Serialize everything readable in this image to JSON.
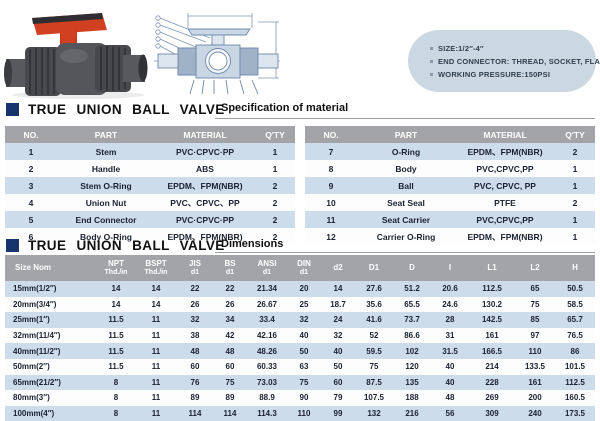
{
  "info_box": {
    "items": [
      "SIZE:1/2″-4″",
      "END CONNECTOR: THREAD, SOCKET, FLANGE",
      "WORKING PRESSURE:150PSI"
    ]
  },
  "sections": {
    "materials": {
      "title": "TRUE UNION BALL VALVE",
      "subtitle": "Specification of material"
    },
    "dimensions": {
      "title": "TRUE UNION BALL VALVE",
      "subtitle": "Dimensions"
    }
  },
  "material_table": {
    "headers": [
      "NO.",
      "PART",
      "MATERIAL",
      "Q'TY"
    ],
    "left_rows": [
      [
        "1",
        "Stem",
        "PVC·CPVC·PP",
        "1"
      ],
      [
        "2",
        "Handle",
        "ABS",
        "1"
      ],
      [
        "3",
        "Stem O-Ring",
        "EPDM、FPM(NBR)",
        "2"
      ],
      [
        "4",
        "Union Nut",
        "PVC、CPVC、PP",
        "2"
      ],
      [
        "5",
        "End Connector",
        "PVC·CPVC·PP",
        "2"
      ],
      [
        "6",
        "Body O-Ring",
        "EPDM、FPM(NBR)",
        "2"
      ]
    ],
    "right_rows": [
      [
        "7",
        "O-Ring",
        "EPDM、FPM(NBR)",
        "2"
      ],
      [
        "8",
        "Body",
        "PVC,CPVC,PP",
        "1"
      ],
      [
        "9",
        "Ball",
        "PVC, CPVC, PP",
        "1"
      ],
      [
        "10",
        "Seat Seal",
        "PTFE",
        "2"
      ],
      [
        "11",
        "Seat Carrier",
        "PVC,CPVC,PP",
        "1"
      ],
      [
        "12",
        "Carrier O-Ring",
        "EPDM、FPM(NBR)",
        "1"
      ]
    ]
  },
  "dimensions_table": {
    "headers": [
      {
        "top": "Size Nom",
        "sub": ""
      },
      {
        "top": "NPT",
        "sub": "Thd./in"
      },
      {
        "top": "BSPT",
        "sub": "Thd./in"
      },
      {
        "top": "JIS",
        "sub": "d1"
      },
      {
        "top": "BS",
        "sub": "d1"
      },
      {
        "top": "ANSI",
        "sub": "d1"
      },
      {
        "top": "DIN",
        "sub": "d1"
      },
      {
        "top": "d2",
        "sub": ""
      },
      {
        "top": "D1",
        "sub": ""
      },
      {
        "top": "D",
        "sub": ""
      },
      {
        "top": "I",
        "sub": ""
      },
      {
        "top": "L1",
        "sub": ""
      },
      {
        "top": "L2",
        "sub": ""
      },
      {
        "top": "H",
        "sub": ""
      }
    ],
    "rows": [
      [
        "15mm(1/2″)",
        "14",
        "14",
        "22",
        "22",
        "21.34",
        "20",
        "14",
        "27.6",
        "51.2",
        "20.6",
        "112.5",
        "65",
        "50.5"
      ],
      [
        "20mm(3/4″)",
        "14",
        "14",
        "26",
        "26",
        "26.67",
        "25",
        "18.7",
        "35.6",
        "65.5",
        "24.6",
        "130.2",
        "75",
        "58.5"
      ],
      [
        "25mm(1″)",
        "11.5",
        "11",
        "32",
        "34",
        "33.4",
        "32",
        "24",
        "41.6",
        "73.7",
        "28",
        "142.5",
        "85",
        "65.7"
      ],
      [
        "32mm(11/4″)",
        "11.5",
        "11",
        "38",
        "42",
        "42.16",
        "40",
        "32",
        "52",
        "86.6",
        "31",
        "161",
        "97",
        "76.5"
      ],
      [
        "40mm(11/2″)",
        "11.5",
        "11",
        "48",
        "48",
        "48.26",
        "50",
        "40",
        "59.5",
        "102",
        "31.5",
        "166.5",
        "110",
        "86"
      ],
      [
        "50mm(2″)",
        "11.5",
        "11",
        "60",
        "60",
        "60.33",
        "63",
        "50",
        "75",
        "120",
        "40",
        "214",
        "133.5",
        "101.5"
      ],
      [
        "65mm(21/2″)",
        "8",
        "11",
        "76",
        "75",
        "73.03",
        "75",
        "60",
        "87.5",
        "135",
        "40",
        "228",
        "161",
        "112.5"
      ],
      [
        "80mm(3″)",
        "8",
        "11",
        "89",
        "89",
        "88.9",
        "90",
        "79",
        "107.5",
        "188",
        "48",
        "269",
        "200",
        "160.5"
      ],
      [
        "100mm(4″)",
        "8",
        "11",
        "114",
        "114",
        "114.3",
        "110",
        "99",
        "132",
        "216",
        "56",
        "309",
        "240",
        "173.5"
      ]
    ]
  },
  "colors": {
    "accent_navy": "#17356b",
    "table_header_gray": "#a2a4a7",
    "row_blue": "#cddcea",
    "info_box_bg": "#ccd8e1",
    "handle_red": "#d14020",
    "valve_body_gray": "#4d4f55",
    "drawing_blue": "#7d95b8"
  }
}
